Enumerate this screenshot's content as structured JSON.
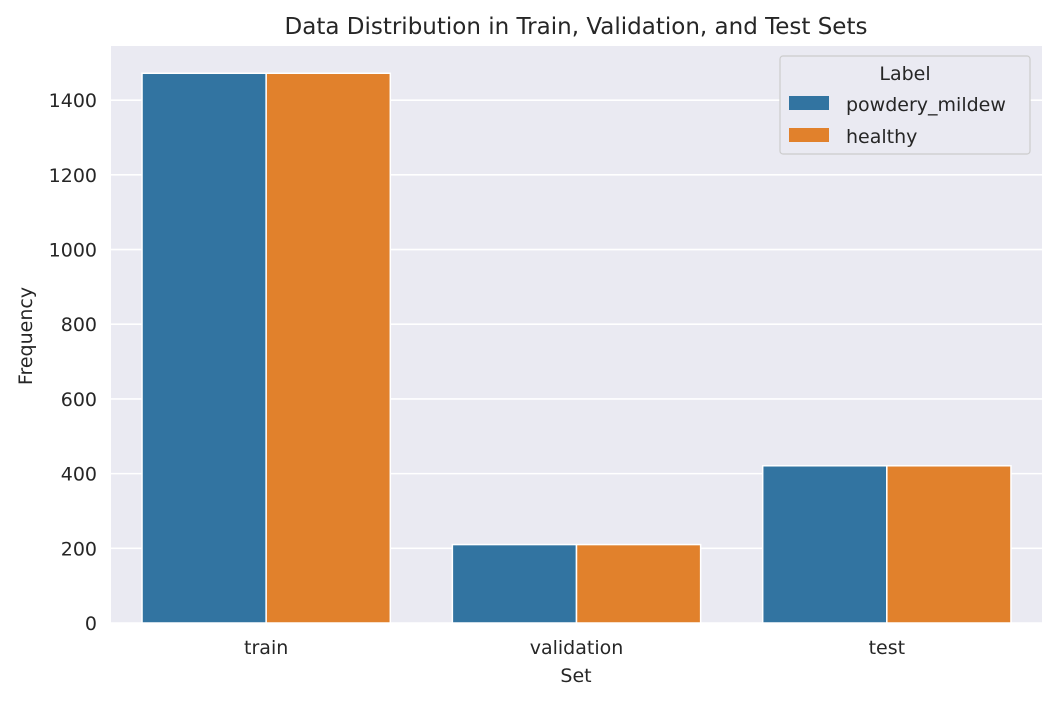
{
  "chart_data": {
    "type": "bar",
    "title": "Data Distribution in Train, Validation, and Test Sets",
    "xlabel": "Set",
    "ylabel": "Frequency",
    "categories": [
      "train",
      "validation",
      "test"
    ],
    "series": [
      {
        "name": "powdery_mildew",
        "values": [
          1472,
          210,
          421
        ],
        "color": "#3274a1"
      },
      {
        "name": "healthy",
        "values": [
          1472,
          210,
          421
        ],
        "color": "#e1812c"
      }
    ],
    "ylim": [
      0,
      1545
    ],
    "yticks": [
      0,
      200,
      400,
      600,
      800,
      1000,
      1200,
      1400
    ],
    "grid": true,
    "legend": {
      "title": "Label",
      "placement": "top-right"
    },
    "background": "#eaeaf2"
  }
}
